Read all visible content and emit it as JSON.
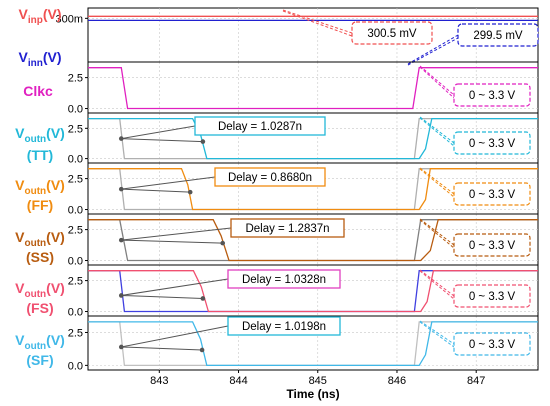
{
  "chart_data": {
    "type": "line",
    "xlabel": "Time (ns)",
    "xlim": [
      842.1,
      847.78
    ],
    "x_ticks": [
      "843",
      "844",
      "845",
      "846",
      "847"
    ],
    "x_tick_values": [
      843,
      844,
      845,
      846,
      847
    ],
    "colors": {
      "vinp": "#f05050",
      "vinn": "#2020d0",
      "clkc": "#e020c0",
      "tt": "#22b8d8",
      "ff": "#f08c10",
      "ss": "#b85c10",
      "fs": "#f05070",
      "sf": "#40b8e8",
      "grid": "#c8c8c8"
    },
    "panels": [
      {
        "id": "inputs",
        "labels": [
          {
            "main": "V",
            "sub": "inp",
            "tail": "(V)",
            "color": "#f05050"
          },
          {
            "main": "V",
            "sub": "inn",
            "tail": "(V)",
            "color": "#2020d0"
          }
        ],
        "y_ticks": [
          "300m"
        ],
        "y_tick_values": [
          0.3
        ],
        "ylim": [
          0.29,
          0.302
        ],
        "series": [
          {
            "color": "#f05050",
            "x": [
              842.1,
              847.78
            ],
            "y": [
              0.3005,
              0.3005
            ]
          },
          {
            "color": "#2020d0",
            "x": [
              842.1,
              847.78
            ],
            "y": [
              0.2995,
              0.2995
            ]
          }
        ],
        "callouts": [
          {
            "text": "300.5 mV",
            "color": "#f05050",
            "dash": true
          },
          {
            "text": "299.5 mV",
            "color": "#2020d0",
            "dash": true
          }
        ]
      },
      {
        "id": "clkc",
        "labels": [
          {
            "main": "Clkc",
            "sub": "",
            "tail": "",
            "color": "#e020c0"
          }
        ],
        "y_ticks": [
          "0.0",
          "2.5"
        ],
        "y_tick_values": [
          0,
          2.5
        ],
        "ylim": [
          -0.2,
          3.6
        ],
        "series": [
          {
            "color": "#e020c0",
            "x": [
              842.1,
              842.52,
              842.6,
              846.2,
              846.28,
              847.78
            ],
            "y": [
              3.3,
              3.3,
              0,
              0,
              3.3,
              3.3
            ]
          }
        ],
        "callouts": [
          {
            "text": "0 ~ 3.3 V",
            "color": "#e020c0",
            "dash": true
          }
        ]
      },
      {
        "id": "tt",
        "labels": [
          {
            "main": "V",
            "sub": "outn",
            "tail": "(V)",
            "color": "#22b8d8"
          },
          {
            "main": "(TT)",
            "sub": "",
            "tail": "",
            "color": "#22b8d8"
          }
        ],
        "y_ticks": [
          "0.0",
          "2.5"
        ],
        "y_tick_values": [
          0,
          2.5
        ],
        "ylim": [
          -0.2,
          3.6
        ],
        "series": [
          {
            "color": "#b0b0b0",
            "x": [
              842.1,
              842.5,
              842.56,
              846.22,
              846.28,
              847.78
            ],
            "y": [
              3.3,
              3.3,
              0,
              0,
              3.3,
              3.3
            ]
          },
          {
            "color": "#22b8d8",
            "x": [
              842.1,
              843.42,
              843.52,
              843.6,
              846.28,
              846.36,
              846.44,
              847.78
            ],
            "y": [
              3.3,
              3.3,
              2.0,
              0,
              0,
              0.8,
              3.3,
              3.3
            ]
          }
        ],
        "delay": {
          "text": "Delay = 1.0287n",
          "color": "#22b8d8",
          "x1": 842.52,
          "x2": 843.55,
          "y": 1.65
        },
        "callouts": [
          {
            "text": "0 ~ 3.3 V",
            "color": "#22b8d8",
            "dash": true
          }
        ]
      },
      {
        "id": "ff",
        "labels": [
          {
            "main": "V",
            "sub": "outn",
            "tail": "(V)",
            "color": "#f08c10"
          },
          {
            "main": "(FF)",
            "sub": "",
            "tail": "",
            "color": "#f08c10"
          }
        ],
        "y_ticks": [
          "0.0",
          "2.5"
        ],
        "y_tick_values": [
          0,
          2.5
        ],
        "ylim": [
          -0.2,
          3.6
        ],
        "series": [
          {
            "color": "#b0b0b0",
            "x": [
              842.1,
              842.5,
              842.56,
              846.22,
              846.28,
              847.78
            ],
            "y": [
              3.3,
              3.3,
              0,
              0,
              3.3,
              3.3
            ]
          },
          {
            "color": "#f08c10",
            "x": [
              842.1,
              843.28,
              843.36,
              843.42,
              846.28,
              846.36,
              846.42,
              847.78
            ],
            "y": [
              3.3,
              3.3,
              2.0,
              0,
              0,
              0.8,
              3.3,
              3.3
            ]
          }
        ],
        "delay": {
          "text": "Delay = 0.8680n",
          "color": "#f08c10",
          "x1": 842.52,
          "x2": 843.39,
          "y": 1.65
        },
        "callouts": [
          {
            "text": "0 ~ 3.3 V",
            "color": "#f08c10",
            "dash": true
          }
        ]
      },
      {
        "id": "ss",
        "labels": [
          {
            "main": "V",
            "sub": "outn",
            "tail": "(V)",
            "color": "#b85c10"
          },
          {
            "main": "(SS)",
            "sub": "",
            "tail": "",
            "color": "#b85c10"
          }
        ],
        "y_ticks": [
          "0.0",
          "2.5"
        ],
        "y_tick_values": [
          0,
          2.5
        ],
        "ylim": [
          -0.2,
          3.6
        ],
        "series": [
          {
            "color": "#808080",
            "x": [
              842.1,
              842.5,
              842.6,
              846.22,
              846.3,
              847.78
            ],
            "y": [
              3.3,
              3.3,
              0,
              0,
              3.3,
              3.3
            ]
          },
          {
            "color": "#b85c10",
            "x": [
              842.1,
              843.68,
              843.78,
              843.88,
              846.3,
              846.42,
              846.52,
              847.78
            ],
            "y": [
              3.3,
              3.3,
              2.0,
              0,
              0,
              0.8,
              3.3,
              3.3
            ]
          }
        ],
        "delay": {
          "text": "Delay = 1.2837n",
          "color": "#b85c10",
          "x1": 842.52,
          "x2": 843.8,
          "y": 1.65
        },
        "callouts": [
          {
            "text": "0 ~ 3.3 V",
            "color": "#b85c10",
            "dash": true
          }
        ]
      },
      {
        "id": "fs",
        "labels": [
          {
            "main": "V",
            "sub": "outn",
            "tail": "(V)",
            "color": "#f05070"
          },
          {
            "main": "(FS)",
            "sub": "",
            "tail": "",
            "color": "#f05070"
          }
        ],
        "y_ticks": [
          "0.0",
          "2.5"
        ],
        "y_tick_values": [
          0,
          2.5
        ],
        "ylim": [
          -0.2,
          3.6
        ],
        "series": [
          {
            "color": "#4040e0",
            "x": [
              842.1,
              842.5,
              842.56,
              846.22,
              846.28,
              847.78
            ],
            "y": [
              3.3,
              3.3,
              0,
              0,
              3.3,
              3.3
            ]
          },
          {
            "color": "#f05070",
            "x": [
              842.1,
              843.43,
              843.53,
              843.62,
              846.3,
              846.38,
              846.46,
              847.78
            ],
            "y": [
              3.3,
              3.3,
              2.0,
              0,
              0,
              0.8,
              3.3,
              3.3
            ]
          }
        ],
        "delay": {
          "text": "Delay = 1.0328n",
          "color": "#e040c0",
          "x1": 842.52,
          "x2": 843.55,
          "y": 1.3
        },
        "callouts": [
          {
            "text": "0 ~ 3.3 V",
            "color": "#f05070",
            "dash": true
          }
        ]
      },
      {
        "id": "sf",
        "labels": [
          {
            "main": "V",
            "sub": "outn",
            "tail": "(V)",
            "color": "#40b8e8"
          },
          {
            "main": "(SF)",
            "sub": "",
            "tail": "",
            "color": "#40b8e8"
          }
        ],
        "y_ticks": [
          "0.0",
          "2.5"
        ],
        "y_tick_values": [
          0,
          2.5
        ],
        "ylim": [
          -0.2,
          3.6
        ],
        "series": [
          {
            "color": "#c0c0c0",
            "x": [
              842.1,
              842.5,
              842.56,
              846.22,
              846.28,
              847.78
            ],
            "y": [
              3.3,
              3.3,
              0,
              0,
              3.3,
              3.3
            ]
          },
          {
            "color": "#40b8e8",
            "x": [
              842.1,
              843.42,
              843.52,
              843.6,
              846.28,
              846.36,
              846.44,
              847.78
            ],
            "y": [
              3.3,
              3.3,
              2.0,
              0,
              0,
              0.8,
              3.3,
              3.3
            ]
          }
        ],
        "delay": {
          "text": "Delay = 1.0198n",
          "color": "#22b8d8",
          "x1": 842.52,
          "x2": 843.54,
          "y": 1.4
        },
        "callouts": [
          {
            "text": "0 ~ 3.3 V",
            "color": "#40b8e8",
            "dash": true
          }
        ]
      }
    ]
  }
}
